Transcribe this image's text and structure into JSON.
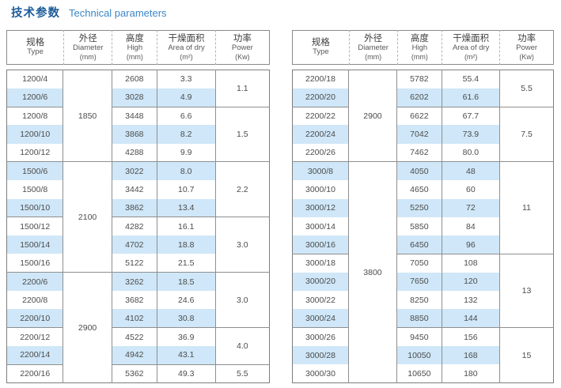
{
  "title": {
    "zh": "技术参数",
    "en": "Technical parameters"
  },
  "colors": {
    "title_zh": "#1d5c9b",
    "title_en": "#3c86c6",
    "row_stripe": "#cfe7f8",
    "grid_border": "#8f8f8f",
    "cell_text": "#4c4c4c"
  },
  "table_header": {
    "type_zh": "规格",
    "type_en": "Type",
    "diameter_zh": "外径",
    "diameter_en": "Diameter",
    "diameter_unit": "(mm)",
    "high_zh": "高度",
    "high_en": "High",
    "high_unit": "(mm)",
    "area_zh": "干燥面积",
    "area_en": "Area of dry",
    "area_unit": "(m²)",
    "power_zh": "功率",
    "power_en": "Power",
    "power_unit": "(Kw)"
  },
  "tables": [
    {
      "id": "left",
      "rows": [
        {
          "type": "1200/4",
          "high": "2608",
          "area": "3.3"
        },
        {
          "type": "1200/6",
          "high": "3028",
          "area": "4.9"
        },
        {
          "type": "1200/8",
          "high": "3448",
          "area": "6.6"
        },
        {
          "type": "1200/10",
          "high": "3868",
          "area": "8.2"
        },
        {
          "type": "1200/12",
          "high": "4288",
          "area": "9.9"
        },
        {
          "type": "1500/6",
          "high": "3022",
          "area": "8.0"
        },
        {
          "type": "1500/8",
          "high": "3442",
          "area": "10.7"
        },
        {
          "type": "1500/10",
          "high": "3862",
          "area": "13.4"
        },
        {
          "type": "1500/12",
          "high": "4282",
          "area": "16.1"
        },
        {
          "type": "1500/14",
          "high": "4702",
          "area": "18.8"
        },
        {
          "type": "1500/16",
          "high": "5122",
          "area": "21.5"
        },
        {
          "type": "2200/6",
          "high": "3262",
          "area": "18.5"
        },
        {
          "type": "2200/8",
          "high": "3682",
          "area": "24.6"
        },
        {
          "type": "2200/10",
          "high": "4102",
          "area": "30.8"
        },
        {
          "type": "2200/12",
          "high": "4522",
          "area": "36.9"
        },
        {
          "type": "2200/14",
          "high": "4942",
          "area": "43.1"
        },
        {
          "type": "2200/16",
          "high": "5362",
          "area": "49.3"
        }
      ],
      "diameter_groups": [
        {
          "value": "1850",
          "span": 5
        },
        {
          "value": "2100",
          "span": 6
        },
        {
          "value": "2900",
          "span": 6
        }
      ],
      "power_groups": [
        {
          "value": "1.1",
          "span": 2
        },
        {
          "value": "1.5",
          "span": 3
        },
        {
          "value": "2.2",
          "span": 3
        },
        {
          "value": "3.0",
          "span": 3
        },
        {
          "value": "3.0",
          "span": 3
        },
        {
          "value": "4.0",
          "span": 2
        },
        {
          "value": "5.5",
          "span": 1
        }
      ]
    },
    {
      "id": "right",
      "rows": [
        {
          "type": "2200/18",
          "high": "5782",
          "area": "55.4"
        },
        {
          "type": "2200/20",
          "high": "6202",
          "area": "61.6"
        },
        {
          "type": "2200/22",
          "high": "6622",
          "area": "67.7"
        },
        {
          "type": "2200/24",
          "high": "7042",
          "area": "73.9"
        },
        {
          "type": "2200/26",
          "high": "7462",
          "area": "80.0"
        },
        {
          "type": "3000/8",
          "high": "4050",
          "area": "48"
        },
        {
          "type": "3000/10",
          "high": "4650",
          "area": "60"
        },
        {
          "type": "3000/12",
          "high": "5250",
          "area": "72"
        },
        {
          "type": "3000/14",
          "high": "5850",
          "area": "84"
        },
        {
          "type": "3000/16",
          "high": "6450",
          "area": "96"
        },
        {
          "type": "3000/18",
          "high": "7050",
          "area": "108"
        },
        {
          "type": "3000/20",
          "high": "7650",
          "area": "120"
        },
        {
          "type": "3000/22",
          "high": "8250",
          "area": "132"
        },
        {
          "type": "3000/24",
          "high": "8850",
          "area": "144"
        },
        {
          "type": "3000/26",
          "high": "9450",
          "area": "156"
        },
        {
          "type": "3000/28",
          "high": "10050",
          "area": "168"
        },
        {
          "type": "3000/30",
          "high": "10650",
          "area": "180"
        }
      ],
      "diameter_groups": [
        {
          "value": "2900",
          "span": 5
        },
        {
          "value": "3800",
          "span": 12
        }
      ],
      "power_groups": [
        {
          "value": "5.5",
          "span": 2
        },
        {
          "value": "7.5",
          "span": 3
        },
        {
          "value": "11",
          "span": 5
        },
        {
          "value": "13",
          "span": 4
        },
        {
          "value": "15",
          "span": 3
        }
      ]
    }
  ]
}
